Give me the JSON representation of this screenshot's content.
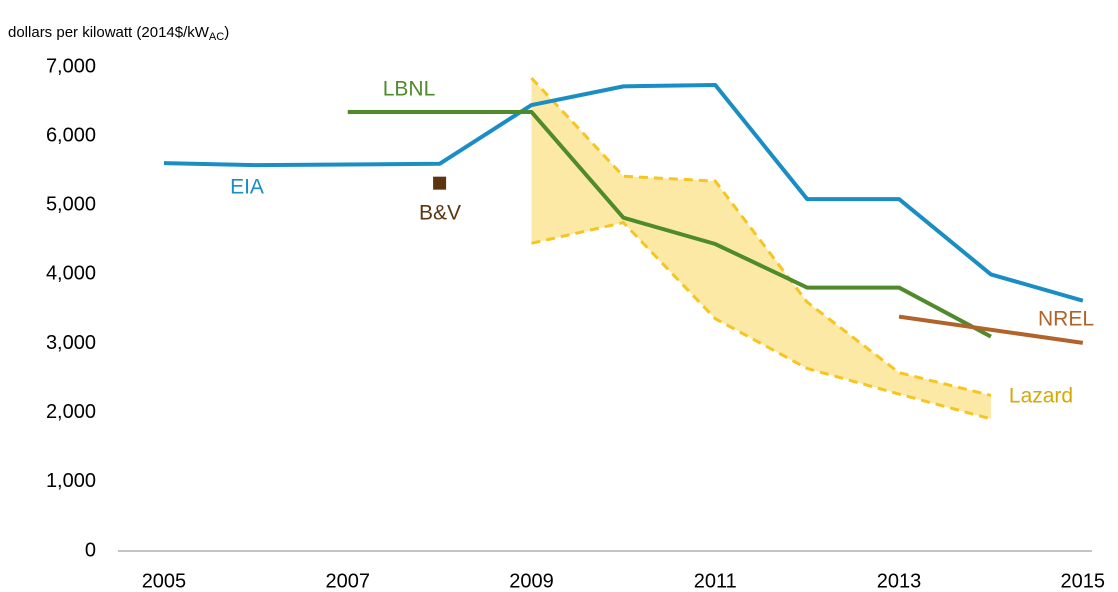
{
  "chart_data": {
    "type": "line",
    "ylabel": [
      "dollars per kilowatt (2014$/kW",
      "AC",
      ")"
    ],
    "xlim": [
      2004.5,
      2015.1
    ],
    "xticks": [
      2005,
      2007,
      2009,
      2011,
      2013,
      2015
    ],
    "ylim": [
      0,
      7000
    ],
    "yticks": [
      0,
      {
        "value": 1000,
        "label": "1,000"
      },
      {
        "value": 2000,
        "label": "2,000"
      },
      {
        "value": 3000,
        "label": "3,000"
      },
      {
        "value": 4000,
        "label": "4,000"
      },
      {
        "value": 5000,
        "label": "5,000"
      },
      {
        "value": 6000,
        "label": "6,000"
      },
      {
        "value": 7000,
        "label": "7,000"
      }
    ],
    "series": [
      {
        "name": "EIA",
        "kind": "line",
        "color": "#1a8ec4",
        "x": [
          2005,
          2006,
          2007,
          2008,
          2009,
          2010,
          2011,
          2012,
          2013,
          2014,
          2015
        ],
        "values": [
          5610,
          5580,
          5590,
          5600,
          6450,
          6720,
          6740,
          5090,
          5090,
          4000,
          3620
        ]
      },
      {
        "name": "LBNL",
        "kind": "line",
        "color": "#4f8a2b",
        "x": [
          2007,
          2009,
          2010,
          2011,
          2012,
          2013,
          2014
        ],
        "values": [
          6350,
          6350,
          4820,
          4440,
          3810,
          3810,
          3100
        ]
      },
      {
        "name": "NREL",
        "kind": "line",
        "color": "#b0642a",
        "x": [
          2013,
          2015
        ],
        "values": [
          3390,
          3010
        ]
      },
      {
        "name": "B&V",
        "kind": "point",
        "color": "#5a3510",
        "x": [
          2008
        ],
        "values": [
          5320
        ]
      },
      {
        "name": "Lazard",
        "kind": "band",
        "color": "#f7c520",
        "x": [
          2009,
          2010,
          2011,
          2012,
          2013,
          2014
        ],
        "high": [
          6840,
          5420,
          5350,
          3600,
          2580,
          2250
        ],
        "low": [
          4450,
          4750,
          3360,
          2640,
          2270,
          1910
        ]
      }
    ]
  }
}
